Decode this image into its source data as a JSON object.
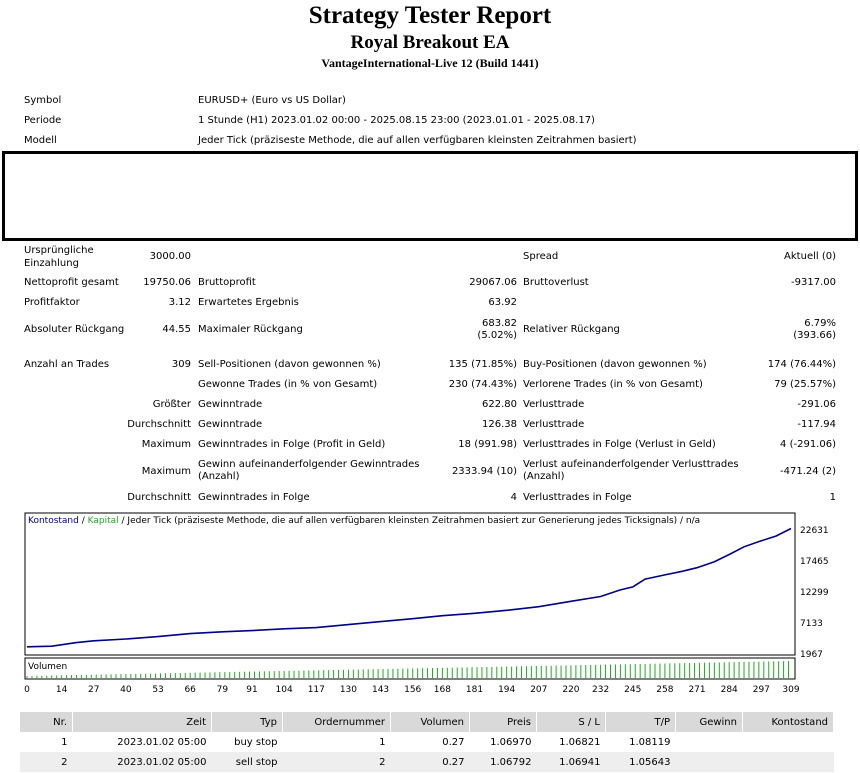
{
  "header": {
    "title": "Strategy Tester Report",
    "ea": "Royal Breakout EA",
    "server": "VantageInternational-Live 12 (Build 1441)"
  },
  "info": {
    "symbol_label": "Symbol",
    "symbol_value": "EURUSD+ (Euro vs US Dollar)",
    "period_label": "Periode",
    "period_value": "1 Stunde (H1) 2023.01.02 00:00 - 2025.08.15 23:00 (2023.01.01 - 2025.08.17)",
    "model_label": "Modell",
    "model_value": "Jeder Tick (präziseste Methode, die auf allen verfügbaren kleinsten Zeitrahmen basiert)"
  },
  "stats": {
    "deposit_label_1": "Ursprüngliche",
    "deposit_label_2": "Einzahlung",
    "deposit_value": "3000.00",
    "spread_label": "Spread",
    "spread_value": "Aktuell (0)",
    "net_label": "Nettoprofit gesamt",
    "net_value": "19750.06",
    "gross_profit_label": "Bruttoprofit",
    "gross_profit_value": "29067.06",
    "gross_loss_label": "Bruttoverlust",
    "gross_loss_value": "-9317.00",
    "pf_label": "Profitfaktor",
    "pf_value": "3.12",
    "expected_label": "Erwartetes Ergebnis",
    "expected_value": "63.92",
    "abs_dd_label": "Absoluter Rückgang",
    "abs_dd_value": "44.55",
    "max_dd_label": "Maximaler Rückgang",
    "max_dd_value_1": "683.82",
    "max_dd_value_2": "(5.02%)",
    "rel_dd_label": "Relativer Rückgang",
    "rel_dd_value_1": "6.79%",
    "rel_dd_value_2": "(393.66)",
    "trades_label": "Anzahl an Trades",
    "trades_value": "309",
    "sell_label": "Sell-Positionen (davon gewonnen %)",
    "sell_value": "135 (71.85%)",
    "buy_label": "Buy-Positionen (davon gewonnen %)",
    "buy_value": "174 (76.44%)",
    "won_label": "Gewonne Trades (in % von Gesamt)",
    "won_value": "230 (74.43%)",
    "lost_label": "Verlorene Trades (in % von Gesamt)",
    "lost_value": "79 (25.57%)",
    "largest_label": "Größter",
    "largest_win_label": "Gewinntrade",
    "largest_win_value": "622.80",
    "largest_loss_label": "Verlusttrade",
    "largest_loss_value": "-291.06",
    "avg_label": "Durchschnitt",
    "avg_win_label": "Gewinntrade",
    "avg_win_value": "126.38",
    "avg_loss_label": "Verlusttrade",
    "avg_loss_value": "-117.94",
    "max_label_1": "Maximum",
    "max_cons_win_label": "Gewinntrades in Folge (Profit in Geld)",
    "max_cons_win_value": "18 (991.98)",
    "max_cons_loss_label": "Verlusttrades in Folge (Verlust in Geld)",
    "max_cons_loss_value": "4 (-291.06)",
    "max_label_2": "Maximum",
    "max_cons_profit_label_1": "Gewinn aufeinanderfolgender Gewinntrades",
    "max_cons_profit_label_2": "(Anzahl)",
    "max_cons_profit_value": "2333.94 (10)",
    "max_cons_lossamt_label_1": "Verlust aufeinanderfolgender Verlusttrades",
    "max_cons_lossamt_label_2": "(Anzahl)",
    "max_cons_lossamt_value": "-471.24 (2)",
    "avg_label_2": "Durchschnitt",
    "avg_cons_win_label": "Gewinntrades in Folge",
    "avg_cons_win_value": "4",
    "avg_cons_loss_label": "Verlusttrades in Folge",
    "avg_cons_loss_value": "1"
  },
  "chart_data": {
    "type": "line",
    "legend_balance": "Kontostand",
    "legend_sep1": " / ",
    "legend_equity": "Kapital",
    "legend_rest": " / Jeder Tick (präziseste Methode, die auf allen verfügbaren kleinsten Zeitrahmen basiert zur Generierung jedes Ticksignals) / n/a",
    "volume_label": "Volumen",
    "y_ticks": [
      22631,
      17465,
      12299,
      7133,
      1967
    ],
    "x_ticks": [
      0,
      14,
      27,
      40,
      53,
      66,
      79,
      91,
      104,
      117,
      130,
      143,
      156,
      168,
      181,
      194,
      207,
      220,
      232,
      245,
      258,
      271,
      284,
      297,
      309
    ],
    "xlim": [
      0,
      309
    ],
    "ylim": [
      1967,
      24000
    ],
    "balance_color": "#00008b",
    "volume_color": "#22aa22",
    "series": [
      {
        "name": "Kontostand",
        "x": [
          0,
          10,
          20,
          27,
          40,
          53,
          66,
          79,
          91,
          104,
          117,
          130,
          143,
          156,
          168,
          181,
          194,
          207,
          220,
          232,
          240,
          245,
          250,
          258,
          265,
          271,
          278,
          284,
          290,
          297,
          303,
          309
        ],
        "y": [
          3000,
          3100,
          3700,
          4000,
          4300,
          4700,
          5200,
          5500,
          5700,
          6000,
          6200,
          6700,
          7200,
          7700,
          8200,
          8600,
          9100,
          9700,
          10600,
          11400,
          12500,
          13000,
          14300,
          15000,
          15600,
          16200,
          17200,
          18400,
          19700,
          20700,
          21500,
          22750
        ]
      }
    ]
  },
  "table": {
    "headers": [
      "Nr.",
      "Zeit",
      "Typ",
      "Ordernummer",
      "Volumen",
      "Preis",
      "S / L",
      "T/P",
      "Gewinn",
      "Kontostand"
    ],
    "rows": [
      [
        "1",
        "2023.01.02 05:00",
        "buy stop",
        "1",
        "0.27",
        "1.06970",
        "1.06821",
        "1.08119",
        "",
        ""
      ],
      [
        "2",
        "2023.01.02 05:00",
        "sell stop",
        "2",
        "0.27",
        "1.06792",
        "1.06941",
        "1.05643",
        "",
        ""
      ]
    ]
  }
}
